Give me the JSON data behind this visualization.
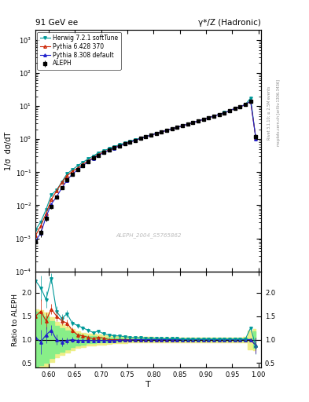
{
  "title_left": "91 GeV ee",
  "title_right": "γ*/Z (Hadronic)",
  "ylabel_main": "1/σ  dσ/dT",
  "ylabel_ratio": "Ratio to ALEPH",
  "xlabel": "T",
  "watermark": "ALEPH_2004_S5765862",
  "right_label_top": "Rivet 3.1.10; ≥ 2.5M events",
  "right_label_bot": "mcplots.cern.ch [arXiv:1306.3436]",
  "xlim": [
    0.575,
    1.005
  ],
  "ylim_main": [
    0.0001,
    2000
  ],
  "ylim_ratio": [
    0.4,
    2.45
  ],
  "ratio_yticks": [
    0.5,
    1.0,
    1.5,
    2.0
  ],
  "T_values": [
    0.575,
    0.585,
    0.595,
    0.605,
    0.615,
    0.625,
    0.635,
    0.645,
    0.655,
    0.665,
    0.675,
    0.685,
    0.695,
    0.705,
    0.715,
    0.725,
    0.735,
    0.745,
    0.755,
    0.765,
    0.775,
    0.785,
    0.795,
    0.805,
    0.815,
    0.825,
    0.835,
    0.845,
    0.855,
    0.865,
    0.875,
    0.885,
    0.895,
    0.905,
    0.915,
    0.925,
    0.935,
    0.945,
    0.955,
    0.965,
    0.975,
    0.985,
    0.995
  ],
  "aleph_y": [
    0.0008,
    0.0015,
    0.004,
    0.009,
    0.018,
    0.035,
    0.058,
    0.088,
    0.12,
    0.16,
    0.21,
    0.27,
    0.33,
    0.4,
    0.47,
    0.55,
    0.63,
    0.72,
    0.82,
    0.93,
    1.05,
    1.18,
    1.32,
    1.48,
    1.65,
    1.85,
    2.05,
    2.28,
    2.55,
    2.85,
    3.18,
    3.55,
    3.98,
    4.47,
    5.01,
    5.62,
    6.31,
    7.24,
    8.51,
    9.55,
    11.2,
    14.1,
    1.2
  ],
  "aleph_err": [
    0.0003,
    0.0004,
    0.0007,
    0.001,
    0.002,
    0.003,
    0.004,
    0.005,
    0.006,
    0.007,
    0.008,
    0.009,
    0.01,
    0.01,
    0.012,
    0.013,
    0.014,
    0.015,
    0.016,
    0.018,
    0.02,
    0.022,
    0.024,
    0.026,
    0.028,
    0.031,
    0.034,
    0.037,
    0.041,
    0.045,
    0.05,
    0.055,
    0.061,
    0.068,
    0.076,
    0.085,
    0.095,
    0.11,
    0.13,
    0.15,
    0.18,
    0.22,
    0.2
  ],
  "herwig_ratio": [
    2.25,
    2.1,
    1.85,
    2.3,
    1.6,
    1.45,
    1.55,
    1.35,
    1.3,
    1.25,
    1.2,
    1.15,
    1.18,
    1.12,
    1.1,
    1.08,
    1.08,
    1.06,
    1.05,
    1.04,
    1.04,
    1.03,
    1.03,
    1.03,
    1.02,
    1.02,
    1.02,
    1.02,
    1.01,
    1.01,
    1.01,
    1.01,
    1.01,
    1.01,
    1.01,
    1.01,
    1.01,
    1.01,
    1.01,
    1.01,
    1.01,
    1.25,
    0.85
  ],
  "pythia6_ratio": [
    1.5,
    1.6,
    1.4,
    1.65,
    1.5,
    1.4,
    1.35,
    1.2,
    1.1,
    1.08,
    1.05,
    1.02,
    1.05,
    1.03,
    1.0,
    1.0,
    1.0,
    1.0,
    1.0,
    1.0,
    1.0,
    1.0,
    1.0,
    1.0,
    1.0,
    1.0,
    1.0,
    1.0,
    1.0,
    1.0,
    1.0,
    1.0,
    1.0,
    1.0,
    1.0,
    1.0,
    1.0,
    1.0,
    1.0,
    1.0,
    1.0,
    1.0,
    0.88
  ],
  "pythia8_ratio": [
    1.05,
    0.95,
    1.1,
    1.2,
    1.0,
    0.95,
    0.98,
    1.0,
    0.98,
    0.98,
    0.98,
    0.98,
    0.98,
    0.98,
    0.98,
    0.98,
    0.99,
    0.99,
    0.99,
    1.0,
    1.0,
    1.0,
    1.0,
    1.0,
    1.0,
    1.0,
    1.0,
    1.0,
    1.0,
    1.0,
    1.0,
    1.0,
    1.0,
    1.0,
    1.0,
    1.0,
    1.0,
    1.0,
    1.0,
    1.0,
    1.0,
    1.0,
    0.87
  ],
  "stat_band_lo": [
    0.4,
    0.45,
    0.5,
    0.6,
    0.7,
    0.75,
    0.8,
    0.85,
    0.88,
    0.9,
    0.92,
    0.93,
    0.94,
    0.95,
    0.95,
    0.96,
    0.96,
    0.97,
    0.97,
    0.97,
    0.97,
    0.97,
    0.97,
    0.97,
    0.97,
    0.97,
    0.97,
    0.98,
    0.98,
    0.98,
    0.98,
    0.98,
    0.98,
    0.98,
    0.98,
    0.98,
    0.98,
    0.98,
    0.98,
    0.98,
    0.97,
    0.97,
    0.82
  ],
  "stat_band_hi": [
    1.6,
    1.55,
    1.5,
    1.4,
    1.3,
    1.25,
    1.2,
    1.15,
    1.12,
    1.1,
    1.08,
    1.07,
    1.06,
    1.05,
    1.05,
    1.04,
    1.04,
    1.03,
    1.03,
    1.03,
    1.03,
    1.03,
    1.03,
    1.03,
    1.03,
    1.03,
    1.03,
    1.02,
    1.02,
    1.02,
    1.02,
    1.02,
    1.02,
    1.02,
    1.02,
    1.02,
    1.02,
    1.02,
    1.02,
    1.02,
    1.03,
    1.03,
    1.18
  ],
  "sys_band_lo": [
    0.35,
    0.38,
    0.42,
    0.52,
    0.62,
    0.68,
    0.73,
    0.78,
    0.82,
    0.85,
    0.87,
    0.88,
    0.89,
    0.9,
    0.91,
    0.92,
    0.93,
    0.93,
    0.94,
    0.94,
    0.94,
    0.94,
    0.94,
    0.95,
    0.95,
    0.95,
    0.95,
    0.95,
    0.95,
    0.95,
    0.95,
    0.95,
    0.95,
    0.95,
    0.95,
    0.95,
    0.95,
    0.95,
    0.95,
    0.95,
    0.94,
    0.8,
    0.78
  ],
  "sys_band_hi": [
    1.65,
    1.62,
    1.58,
    1.48,
    1.38,
    1.32,
    1.27,
    1.22,
    1.18,
    1.15,
    1.13,
    1.12,
    1.11,
    1.1,
    1.09,
    1.08,
    1.07,
    1.07,
    1.06,
    1.06,
    1.06,
    1.06,
    1.06,
    1.05,
    1.05,
    1.05,
    1.05,
    1.05,
    1.05,
    1.05,
    1.05,
    1.05,
    1.05,
    1.05,
    1.05,
    1.05,
    1.05,
    1.05,
    1.05,
    1.05,
    1.06,
    1.2,
    1.22
  ],
  "color_aleph": "#000000",
  "color_herwig": "#009999",
  "color_pythia6": "#cc2200",
  "color_pythia8": "#2222cc",
  "color_stat_band": "#88ee88",
  "color_sys_band": "#eeee88",
  "legend_entries": [
    "ALEPH",
    "Herwig 7.2.1 softTune",
    "Pythia 6.428 370",
    "Pythia 8.308 default"
  ]
}
